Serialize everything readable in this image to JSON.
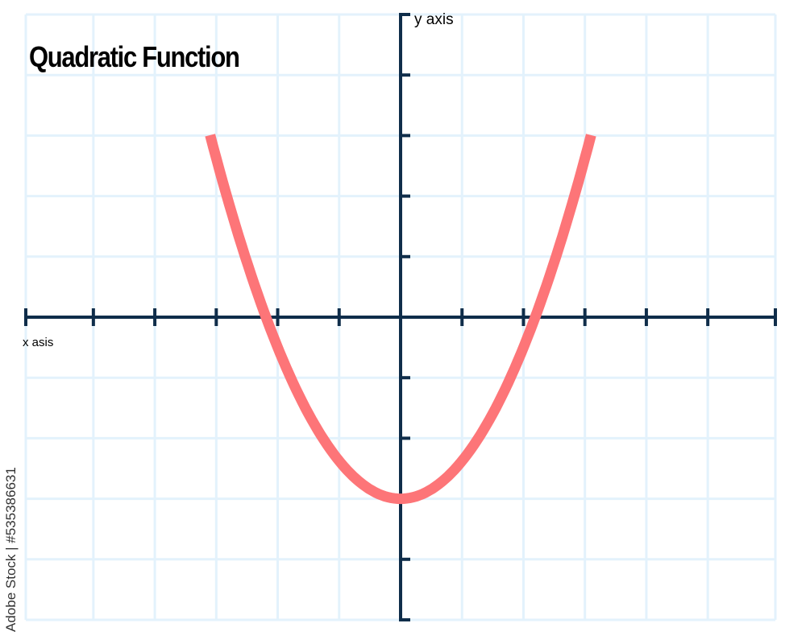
{
  "chart_data": {
    "type": "line",
    "title": "Quadratic Function",
    "xlabel": "x asis",
    "ylabel": "y axis",
    "xlim": [
      -6.1,
      6.1
    ],
    "ylim": [
      -5,
      5
    ],
    "grid": true,
    "tick_labels": false,
    "function": "y = 0.625x^2 - 3",
    "series": [
      {
        "x": [
          -3.1,
          -2.8,
          -2.5,
          -2.2,
          -2.0,
          -1.5,
          -1.0,
          -0.5,
          0,
          0.5,
          1.0,
          1.5,
          2.0,
          2.2,
          2.5,
          2.8,
          3.1
        ],
        "y": [
          3.01,
          1.9,
          0.91,
          0.03,
          -0.5,
          -1.59,
          -2.38,
          -2.84,
          -3,
          -2.84,
          -2.38,
          -1.59,
          -0.5,
          0.03,
          0.91,
          1.9,
          3.01
        ],
        "color": "#fd7578"
      }
    ],
    "axis_color": "#0f2d4a",
    "grid_color": "#e3f2fc"
  },
  "watermark": "Adobe Stock | #535386631"
}
